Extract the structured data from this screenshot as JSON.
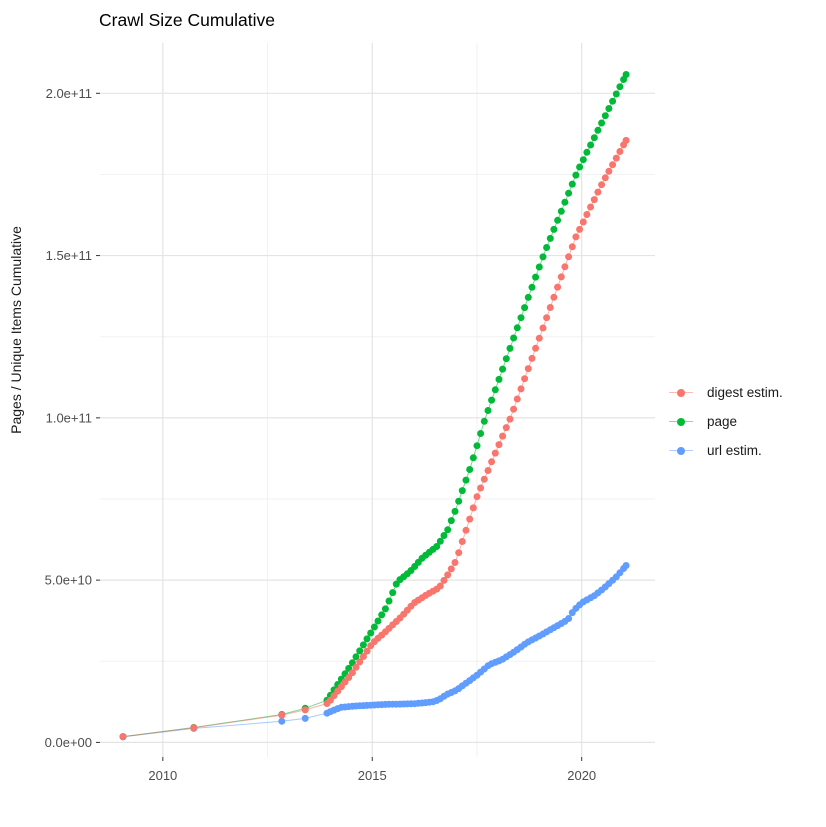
{
  "chart": {
    "title": "Crawl Size Cumulative",
    "ylabel": "Pages / Unique Items Cumulative",
    "xlabel": ""
  },
  "chart_data": {
    "type": "line",
    "title": "Crawl Size Cumulative",
    "xlabel": "",
    "ylabel": "Pages / Unique Items Cumulative",
    "y_value_scale": "values in billions (1e9); axis labels shown in scientific notation",
    "xlim": [
      2008.5,
      2021.75
    ],
    "ylim": [
      -4.5,
      215.5
    ],
    "grid": true,
    "legend_position": "right",
    "x_ticks": {
      "major": [
        2010,
        2015,
        2020
      ],
      "minor": [
        2012.5,
        2017.5
      ],
      "labels": [
        "2010",
        "2015",
        "2020"
      ]
    },
    "y_ticks": {
      "major": [
        0,
        50,
        100,
        150,
        200
      ],
      "minor": [
        25,
        75,
        125,
        175
      ],
      "labels": [
        "0.0e+00",
        "5.0e+10",
        "1.0e+11",
        "1.5e+11",
        "2.0e+11"
      ]
    },
    "sampling": {
      "dense_start": 2014.0,
      "step": 0.0875,
      "note": "sparse yearly crawls before 2014, ~monthly crawls after"
    },
    "draw_order": [
      2,
      1,
      0
    ],
    "series": [
      {
        "name": "digest estim.",
        "color": "#F8766D",
        "keypoints": [
          [
            2009.05,
            1.8
          ],
          [
            2010.74,
            4.5
          ],
          [
            2012.84,
            8.4
          ],
          [
            2013.4,
            10
          ],
          [
            2013.92,
            12
          ],
          [
            2014.0,
            13
          ],
          [
            2014.5,
            21
          ],
          [
            2015.0,
            30.5
          ],
          [
            2015.35,
            34.5
          ],
          [
            2015.7,
            38.8
          ],
          [
            2016.0,
            43
          ],
          [
            2016.3,
            45.5
          ],
          [
            2016.6,
            47.7
          ],
          [
            2016.85,
            52.6
          ],
          [
            2017.0,
            56
          ],
          [
            2017.5,
            75.7
          ],
          [
            2017.9,
            88
          ],
          [
            2018.3,
            100
          ],
          [
            2019.0,
            125
          ],
          [
            2019.5,
            143
          ],
          [
            2019.86,
            155.7
          ],
          [
            2020.5,
            172.5
          ],
          [
            2021.06,
            185.5
          ]
        ]
      },
      {
        "name": "page",
        "color": "#00BA38",
        "keypoints": [
          [
            2009.05,
            1.8
          ],
          [
            2010.74,
            4.6
          ],
          [
            2012.84,
            8.6
          ],
          [
            2013.4,
            10.5
          ],
          [
            2013.92,
            13
          ],
          [
            2014.0,
            14.5
          ],
          [
            2014.5,
            24
          ],
          [
            2015.0,
            34.5
          ],
          [
            2015.33,
            41.5
          ],
          [
            2015.6,
            49.5
          ],
          [
            2015.9,
            52.6
          ],
          [
            2016.2,
            56.9
          ],
          [
            2016.55,
            60.5
          ],
          [
            2016.8,
            65.5
          ],
          [
            2017.0,
            72
          ],
          [
            2017.35,
            85
          ],
          [
            2017.7,
            100
          ],
          [
            2018.4,
            125.5
          ],
          [
            2019.1,
            150.5
          ],
          [
            2019.9,
            176
          ],
          [
            2020.5,
            191.5
          ],
          [
            2021.06,
            205.8
          ]
        ]
      },
      {
        "name": "url estim.",
        "color": "#619CFF",
        "keypoints": [
          [
            2009.05,
            1.7
          ],
          [
            2010.74,
            4.3
          ],
          [
            2012.84,
            6.5
          ],
          [
            2013.4,
            7.4
          ],
          [
            2013.92,
            9.0
          ],
          [
            2014.0,
            9.5
          ],
          [
            2014.25,
            10.8
          ],
          [
            2014.6,
            11.2
          ],
          [
            2015.3,
            11.7
          ],
          [
            2016.0,
            11.9
          ],
          [
            2016.45,
            12.5
          ],
          [
            2016.6,
            13.2
          ],
          [
            2016.78,
            14.8
          ],
          [
            2017.0,
            16.0
          ],
          [
            2017.5,
            20.7
          ],
          [
            2017.8,
            24.0
          ],
          [
            2018.1,
            25.5
          ],
          [
            2018.4,
            28.0
          ],
          [
            2018.7,
            30.8
          ],
          [
            2019.05,
            33.2
          ],
          [
            2019.4,
            35.8
          ],
          [
            2019.67,
            37.8
          ],
          [
            2019.8,
            40.5
          ],
          [
            2020.0,
            43.0
          ],
          [
            2020.3,
            45.2
          ],
          [
            2020.5,
            47.2
          ],
          [
            2020.7,
            49.5
          ],
          [
            2020.85,
            51.3
          ],
          [
            2021.06,
            54.5
          ]
        ]
      }
    ],
    "style": {
      "grid_major_color": "#e4e4e4",
      "grid_minor_color": "#f2f2f2",
      "tick_color": "#333333",
      "tick_label_color": "#4d4d4d",
      "title_color": "#000000",
      "axis_title_color": "#1a1a1a",
      "background": "#ffffff"
    }
  }
}
